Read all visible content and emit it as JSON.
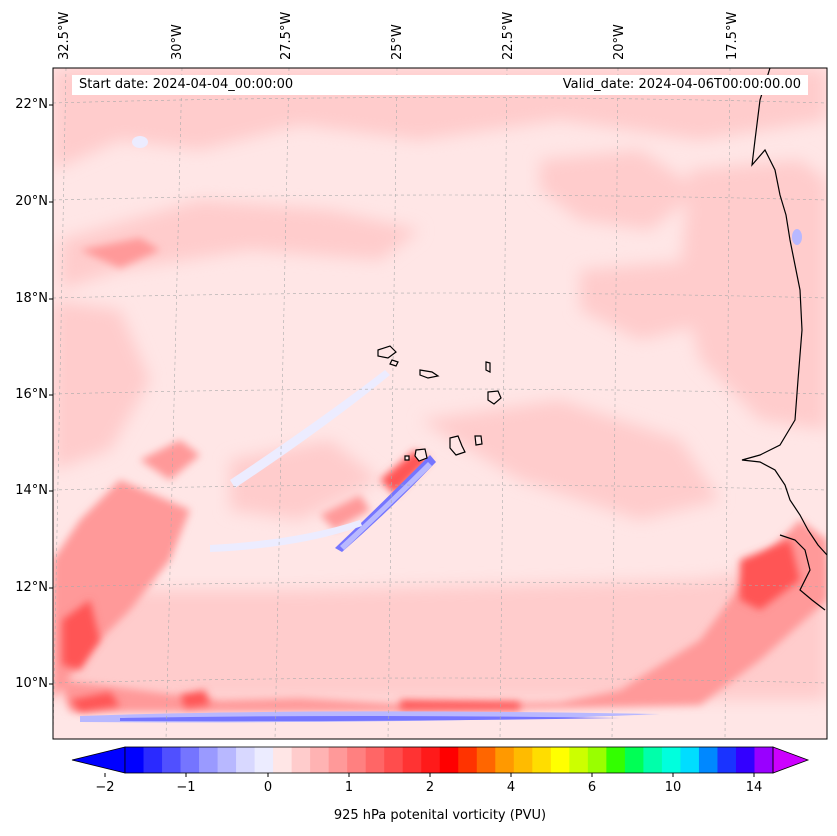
{
  "header": {
    "start_date": "Start date: 2024-04-04_00:00:00",
    "valid_date": "Valid_date: 2024-04-06T00:00:00.00"
  },
  "lon_labels": [
    "32.5°W",
    "30°W",
    "27.5°W",
    "25°W",
    "22.5°W",
    "20°W",
    "17.5°W"
  ],
  "lat_labels": [
    "22°N",
    "20°N",
    "18°N",
    "16°N",
    "14°N",
    "12°N",
    "10°N"
  ],
  "colorbar": {
    "label": "925 hPa potenital vorticity (PVU)",
    "tick_labels": [
      "−2",
      "−1",
      "0",
      "1",
      "2",
      "4",
      "6",
      "10",
      "14"
    ],
    "min_color": "#0000ff",
    "max_color": "#cc00ff",
    "colors": [
      "#0000ff",
      "#2a2aff",
      "#5050ff",
      "#7575ff",
      "#9a9aff",
      "#b8b8ff",
      "#d8d8ff",
      "#ececff",
      "#ffe6e6",
      "#ffcccc",
      "#ffb3b3",
      "#ff9999",
      "#ff8080",
      "#ff6666",
      "#ff4d4d",
      "#ff3333",
      "#ff1a1a",
      "#ff0000",
      "#ff3300",
      "#ff6600",
      "#ff9900",
      "#ffbb00",
      "#ffdd00",
      "#ffff00",
      "#ccff00",
      "#99ff00",
      "#33ff00",
      "#00ff55",
      "#00ffaa",
      "#00ffdd",
      "#00ddff",
      "#0088ff",
      "#1a33ff",
      "#3300ff",
      "#9900ff"
    ]
  }
}
